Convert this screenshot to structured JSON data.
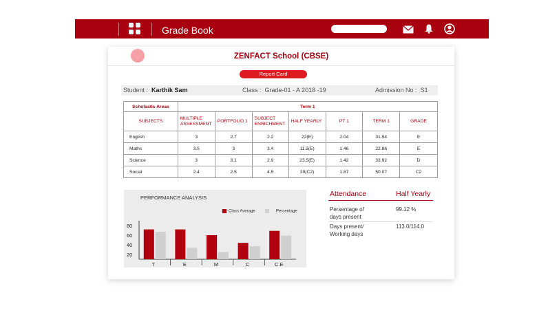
{
  "app": {
    "title": "Grade Book"
  },
  "icons": [
    "grid-icon",
    "mail-icon",
    "bell-icon",
    "user-icon"
  ],
  "colors": {
    "brand": "#a8000f",
    "accent": "#dd1b20",
    "percentage": "#cfcfcf"
  },
  "school": {
    "name": "ZENFACT School (CBSE)",
    "report_button": "Report Card"
  },
  "student": {
    "label": "Student",
    "name": "Karthik Sam",
    "class_label": "Class",
    "class_value": "Grade-01 - A 2018 -19",
    "admission_label": "Admission No",
    "admission_value": "S1"
  },
  "table": {
    "area": "Scholastic Areas",
    "term": "Term 1",
    "headers": [
      "SUBJECTS",
      "MULTIPLE ASSESSMENT",
      "PORTFOLIO 1",
      "SUBJECT ENRICHMENT",
      "HALF YEARLY",
      "PT 1",
      "TERM 1",
      "GRADE"
    ],
    "rows": [
      [
        "English",
        "3",
        "2.7",
        "2.2",
        "22(E)",
        "2.04",
        "31.94",
        "E"
      ],
      [
        "Maths",
        "3.5",
        "3",
        "3.4",
        "11.5(E)",
        "1.46",
        "22.86",
        "E"
      ],
      [
        "Science",
        "3",
        "3.1",
        "2.9",
        "23.5(E)",
        "1.42",
        "33.92",
        "D"
      ],
      [
        "Social",
        "2.4",
        "2.5",
        "4.5",
        "39(C2)",
        "1.67",
        "50.07",
        "C2"
      ]
    ]
  },
  "performance": {
    "title": "PERFORMANCE ANALYSIS",
    "legend": [
      "Class Average",
      "Percentage"
    ]
  },
  "chart_data": {
    "type": "bar",
    "title": "PERFORMANCE ANALYSIS",
    "categories": [
      "T",
      "E",
      "M",
      "C",
      "C.E"
    ],
    "yticks": [
      "80",
      "60",
      "40",
      "20"
    ],
    "ylim": [
      10,
      90
    ],
    "grid": false,
    "legend_position": "top-right",
    "series": [
      {
        "name": "Class Average",
        "color": "#b3000e",
        "values": [
          72,
          72,
          60,
          44,
          69
        ]
      },
      {
        "name": "Percentage",
        "color": "#cfcfcf",
        "values": [
          67,
          34,
          25,
          37,
          59
        ]
      }
    ]
  },
  "attendance": {
    "heading": "Attendance",
    "column": "Half Yearly",
    "rows": [
      {
        "label_line1": "Persentage of",
        "label_line2": "days present",
        "value": "99.12 %"
      },
      {
        "label_line1": "Days present/",
        "label_line2": "Working days",
        "value": "113.0/114.0"
      }
    ]
  }
}
